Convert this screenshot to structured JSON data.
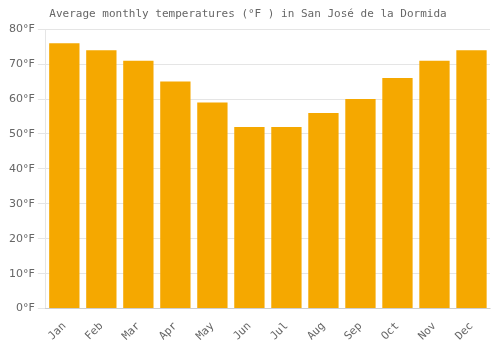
{
  "chart_data": {
    "type": "bar",
    "title": "Average monthly temperatures (°F ) in San José de la Dormida",
    "categories": [
      "Jan",
      "Feb",
      "Mar",
      "Apr",
      "May",
      "Jun",
      "Jul",
      "Aug",
      "Sep",
      "Oct",
      "Nov",
      "Dec"
    ],
    "values": [
      76,
      74,
      71,
      65,
      59,
      52,
      52,
      56,
      60,
      66,
      71,
      74
    ],
    "color": "#F5A800",
    "ylim": [
      0,
      80
    ],
    "yticks": [
      {
        "value": 0,
        "label": "0°F"
      },
      {
        "value": 10,
        "label": "10°F"
      },
      {
        "value": 20,
        "label": "20°F"
      },
      {
        "value": 30,
        "label": "30°F"
      },
      {
        "value": 40,
        "label": "40°F"
      },
      {
        "value": 50,
        "label": "50°F"
      },
      {
        "value": 60,
        "label": "60°F"
      },
      {
        "value": 70,
        "label": "70°F"
      },
      {
        "value": 80,
        "label": "80°F"
      }
    ],
    "grid": true
  }
}
